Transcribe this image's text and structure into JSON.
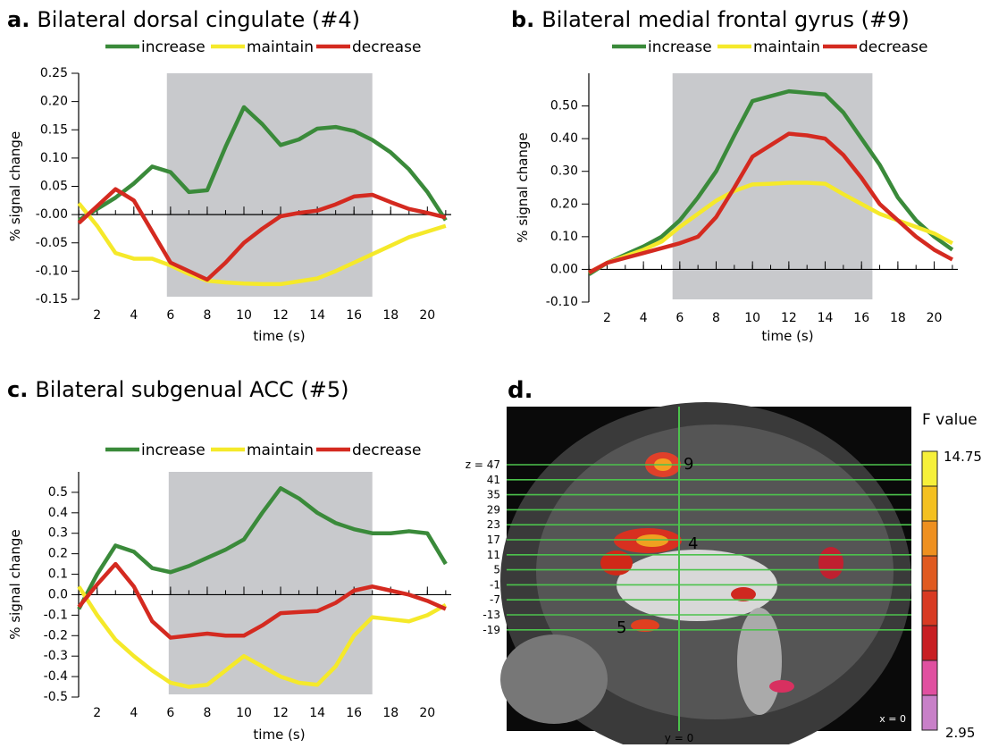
{
  "chart_data": [
    {
      "type": "line",
      "label": "a.",
      "title": "Bilateral dorsal cingulate (#4)",
      "ylabel": "% signal change",
      "xlabel": "time (s)",
      "x": [
        1,
        2,
        3,
        4,
        5,
        6,
        7,
        8,
        9,
        10,
        11,
        12,
        13,
        14,
        15,
        16,
        17,
        18,
        19,
        20,
        21
      ],
      "series": [
        {
          "name": "increase",
          "color": "#3a8a3a",
          "values": [
            -0.01,
            0.01,
            0.03,
            0.055,
            0.085,
            0.075,
            0.04,
            0.043,
            0.12,
            0.19,
            0.16,
            0.123,
            0.133,
            0.152,
            0.155,
            0.148,
            0.132,
            0.11,
            0.08,
            0.04,
            -0.01
          ]
        },
        {
          "name": "maintain",
          "color": "#f5e92a",
          "values": [
            0.02,
            -0.02,
            -0.068,
            -0.078,
            -0.078,
            -0.09,
            -0.105,
            -0.117,
            -0.12,
            -0.122,
            -0.123,
            -0.123,
            -0.118,
            -0.113,
            -0.1,
            -0.085,
            -0.07,
            -0.055,
            -0.04,
            -0.03,
            -0.02
          ]
        },
        {
          "name": "decrease",
          "color": "#d42a20",
          "values": [
            -0.015,
            0.015,
            0.045,
            0.025,
            -0.03,
            -0.085,
            -0.1,
            -0.115,
            -0.085,
            -0.05,
            -0.025,
            -0.003,
            0.003,
            0.007,
            0.018,
            0.032,
            0.035,
            0.022,
            0.01,
            0.003,
            -0.005
          ]
        }
      ],
      "xlim": [
        0.6,
        21.3
      ],
      "xticks": [
        2,
        4,
        6,
        8,
        10,
        12,
        14,
        16,
        18,
        20
      ],
      "minor_xticks": [
        1,
        2,
        3,
        4,
        5,
        6,
        7,
        8,
        9,
        10,
        11,
        12,
        13,
        14,
        15,
        16,
        17,
        18,
        19,
        20,
        21
      ],
      "ylim": [
        -0.15,
        0.25
      ],
      "yticks": [
        -0.15,
        {
          "value": -0.1,
          "label": "-0.10"
        },
        -0.05,
        {
          "value": 0,
          "label": "-0.00"
        },
        0.05,
        {
          "value": 0.1,
          "label": "0.10"
        },
        0.15,
        {
          "value": 0.2,
          "label": "0.20"
        },
        0.25
      ],
      "shaded_xrange": [
        5.8,
        17
      ],
      "shade_color": "#c8c9cc"
    },
    {
      "type": "line",
      "label": "b.",
      "title": "Bilateral medial frontal gyrus (#9)",
      "ylabel": "% signal change",
      "xlabel": "time (s)",
      "x": [
        1,
        2,
        3,
        4,
        5,
        6,
        7,
        8,
        9,
        10,
        11,
        12,
        13,
        14,
        15,
        16,
        17,
        18,
        19,
        20,
        21
      ],
      "series": [
        {
          "name": "increase",
          "color": "#3a8a3a",
          "values": [
            -0.015,
            0.02,
            0.045,
            0.07,
            0.1,
            0.15,
            0.22,
            0.3,
            0.41,
            0.515,
            0.53,
            0.545,
            0.54,
            0.535,
            0.48,
            0.4,
            0.32,
            0.22,
            0.15,
            0.1,
            0.06
          ]
        },
        {
          "name": "maintain",
          "color": "#f5e92a",
          "values": [
            -0.01,
            0.02,
            0.04,
            0.06,
            0.085,
            0.13,
            0.17,
            0.21,
            0.24,
            0.26,
            0.262,
            0.265,
            0.265,
            0.262,
            0.23,
            0.2,
            0.17,
            0.15,
            0.13,
            0.11,
            0.08
          ]
        },
        {
          "name": "decrease",
          "color": "#d42a20",
          "values": [
            -0.01,
            0.02,
            0.035,
            0.05,
            0.065,
            0.08,
            0.1,
            0.16,
            0.25,
            0.345,
            0.38,
            0.415,
            0.41,
            0.4,
            0.35,
            0.28,
            0.2,
            0.15,
            0.1,
            0.06,
            0.03
          ]
        }
      ],
      "xlim": [
        0.6,
        21.3
      ],
      "xticks": [
        2,
        4,
        6,
        8,
        10,
        12,
        14,
        16,
        18,
        20
      ],
      "minor_xticks": [
        1,
        2,
        3,
        4,
        5,
        6,
        7,
        8,
        9,
        10,
        11,
        12,
        13,
        14,
        15,
        16,
        17,
        18,
        19,
        20,
        21
      ],
      "ylim": [
        -0.1,
        0.6
      ],
      "yticks": [
        {
          "value": -0.1,
          "label": "-0.10"
        },
        {
          "value": 0,
          "label": "0.00"
        },
        {
          "value": 0.1,
          "label": "0.10"
        },
        {
          "value": 0.2,
          "label": "0.20"
        },
        {
          "value": 0.3,
          "label": "0.30"
        },
        {
          "value": 0.4,
          "label": "0.40"
        },
        {
          "value": 0.5,
          "label": "0.50"
        }
      ],
      "shaded_xrange": [
        5.6,
        16.6
      ],
      "shade_color": "#c8c9cc"
    },
    {
      "type": "line",
      "label": "c.",
      "title": "Bilateral subgenual ACC (#5)",
      "ylabel": "% signal change",
      "xlabel": "time (s)",
      "x": [
        1,
        2,
        3,
        4,
        5,
        6,
        7,
        8,
        9,
        10,
        11,
        12,
        13,
        14,
        15,
        16,
        17,
        18,
        19,
        20,
        21
      ],
      "series": [
        {
          "name": "increase",
          "color": "#3a8a3a",
          "values": [
            -0.07,
            0.1,
            0.24,
            0.21,
            0.13,
            0.11,
            0.14,
            0.18,
            0.22,
            0.27,
            0.4,
            0.52,
            0.47,
            0.4,
            0.35,
            0.32,
            0.3,
            0.3,
            0.31,
            0.3,
            0.15
          ]
        },
        {
          "name": "maintain",
          "color": "#f5e92a",
          "values": [
            0.04,
            -0.1,
            -0.22,
            -0.3,
            -0.37,
            -0.43,
            -0.45,
            -0.44,
            -0.37,
            -0.3,
            -0.35,
            -0.4,
            -0.43,
            -0.44,
            -0.35,
            -0.2,
            -0.11,
            -0.12,
            -0.13,
            -0.1,
            -0.05
          ]
        },
        {
          "name": "decrease",
          "color": "#d42a20",
          "values": [
            -0.06,
            0.05,
            0.15,
            0.04,
            -0.13,
            -0.21,
            -0.2,
            -0.19,
            -0.2,
            -0.2,
            -0.15,
            -0.09,
            -0.085,
            -0.08,
            -0.04,
            0.02,
            0.04,
            0.02,
            0.0,
            -0.03,
            -0.07
          ]
        }
      ],
      "xlim": [
        0.6,
        21.3
      ],
      "xticks": [
        2,
        4,
        6,
        8,
        10,
        12,
        14,
        16,
        18,
        20
      ],
      "minor_xticks": [
        1,
        2,
        3,
        4,
        5,
        6,
        7,
        8,
        9,
        10,
        11,
        12,
        13,
        14,
        15,
        16,
        17,
        18,
        19,
        20,
        21
      ],
      "ylim": [
        -0.5,
        0.6
      ],
      "yticks": [
        -0.5,
        -0.4,
        -0.3,
        -0.2,
        -0.1,
        {
          "value": 0,
          "label": "0.0"
        },
        0.1,
        0.2,
        0.3,
        0.4,
        0.5
      ],
      "shaded_xrange": [
        5.9,
        17
      ],
      "shade_color": "#c8c9cc"
    }
  ],
  "panel_d": {
    "label": "d.",
    "colorbar": {
      "title": "F value",
      "max": "14.75",
      "min": "2.95"
    },
    "z_labels": [
      "z = 47",
      "41",
      "35",
      "29",
      "23",
      "17",
      "11",
      "5",
      "-1",
      "-7",
      "-13",
      "-19"
    ],
    "region_labels": [
      "9",
      "4",
      "5"
    ],
    "x_label": "x = 0",
    "y_label": "y = 0"
  }
}
